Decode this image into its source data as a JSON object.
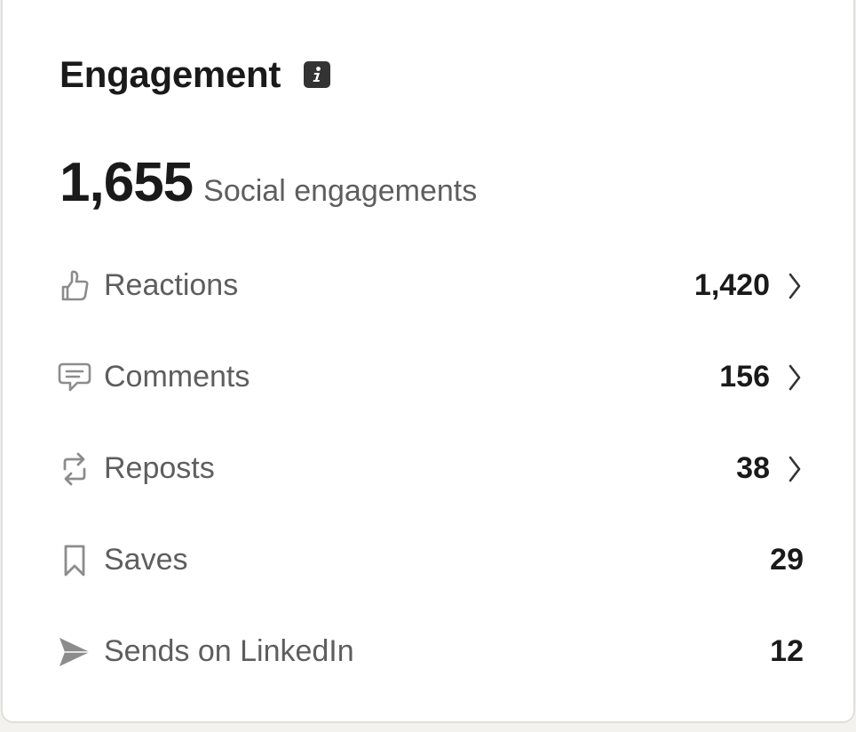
{
  "card": {
    "title": "Engagement",
    "info_icon": "info-icon"
  },
  "summary": {
    "value": "1,655",
    "label": "Social engagements"
  },
  "rows": [
    {
      "icon": "thumbs-up-icon",
      "label": "Reactions",
      "value": "1,420",
      "chevron": true
    },
    {
      "icon": "comment-icon",
      "label": "Comments",
      "value": "156",
      "chevron": true
    },
    {
      "icon": "repost-icon",
      "label": "Reposts",
      "value": "38",
      "chevron": true
    },
    {
      "icon": "bookmark-icon",
      "label": "Saves",
      "value": "29",
      "chevron": false
    },
    {
      "icon": "send-icon",
      "label": "Sends on LinkedIn",
      "value": "12",
      "chevron": false
    }
  ],
  "colors": {
    "text_primary": "#1a1a1a",
    "text_secondary": "#5e5e5e",
    "icon_gray": "#8c8c8c"
  }
}
